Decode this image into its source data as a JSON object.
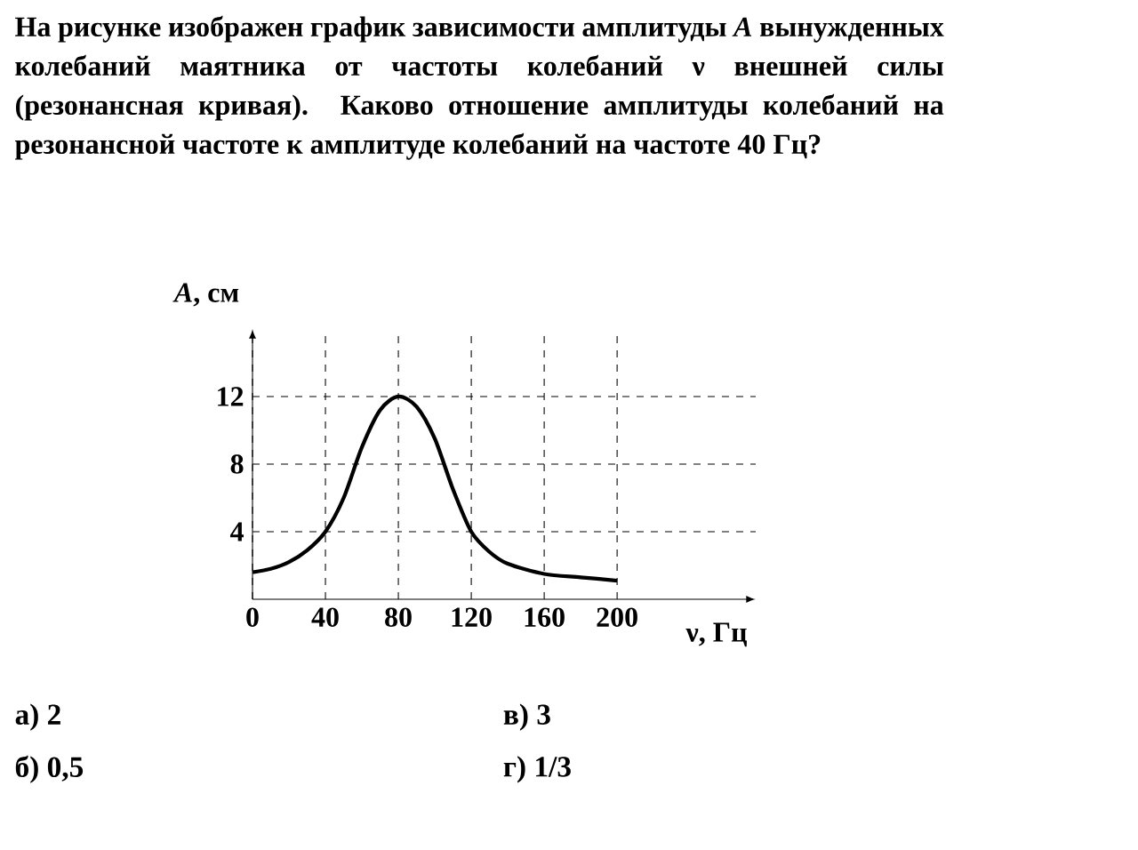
{
  "chart_data": {
    "type": "line",
    "title": "На рисунке изображен график зависимости амплитуды *A* вынужденных колебаний маятника от частоты колебаний ν внешней силы (резонансная кривая). Каково отношение амплитуды колебаний на резонансной частоте к амплитуде колебаний на частоте 40 Гц?",
    "xlabel": "ν, Гц",
    "ylabel": "*A*, см",
    "x": [
      0,
      10,
      20,
      30,
      40,
      50,
      60,
      70,
      80,
      90,
      100,
      110,
      120,
      130,
      140,
      160,
      180,
      200
    ],
    "values": [
      1.6,
      1.8,
      2.2,
      2.9,
      4.0,
      6.0,
      9.0,
      11.2,
      12,
      11.4,
      9.5,
      6.5,
      4.0,
      2.8,
      2.1,
      1.5,
      1.3,
      1.1
    ],
    "color": "#000000",
    "marker": "none",
    "grid": true,
    "xlim": [
      0,
      276
    ],
    "ylim": [
      0,
      16
    ],
    "xticks": [
      0,
      40,
      80,
      120,
      160,
      200
    ],
    "yticks": [
      4,
      8,
      12
    ],
    "annotations": [
      "а) 2",
      "б) 0,5",
      "в) 3",
      "г) 1/3"
    ]
  }
}
